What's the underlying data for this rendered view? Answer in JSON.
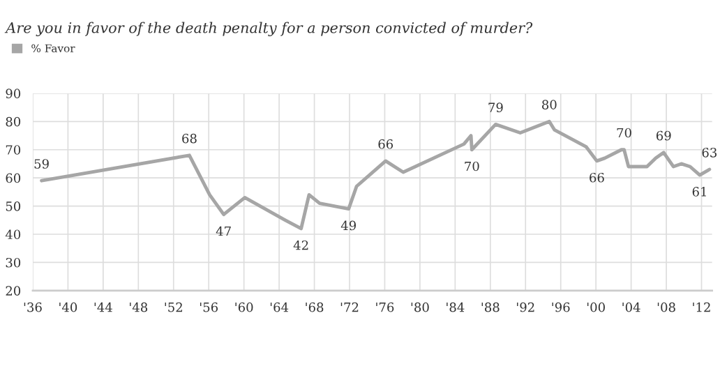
{
  "chart_data": {
    "type": "line",
    "title": "Are you in favor of the death penalty for a person convicted of murder?",
    "x": [
      1937.0,
      1953.8,
      1956.1,
      1957.7,
      1960.1,
      1964.7,
      1966.5,
      1967.4,
      1968.6,
      1971.9,
      1972.8,
      1976.1,
      1978.1,
      1985.0,
      1985.8,
      1985.9,
      1988.6,
      1991.4,
      1994.7,
      1995.3,
      1998.9,
      2000.1,
      2001.0,
      2002.9,
      2003.2,
      2003.7,
      2005.8,
      2006.8,
      2007.7,
      2008.8,
      2009.7,
      2010.7,
      2011.8,
      2012.9
    ],
    "series": [
      {
        "name": "% Favor",
        "color": "#a6a6a6",
        "values": [
          59,
          68,
          54,
          47,
          53,
          45,
          42,
          54,
          51,
          49,
          57,
          66,
          62,
          72,
          75,
          70,
          79,
          76,
          80,
          77,
          71,
          66,
          67,
          70,
          70,
          64,
          64,
          67,
          69,
          64,
          65,
          64,
          61,
          63
        ]
      }
    ],
    "xlim": [
      1936,
      2013.2
    ],
    "ylim": [
      20,
      90
    ],
    "xticks": [
      {
        "value": 1936,
        "label": "'36"
      },
      {
        "value": 1940,
        "label": "'40"
      },
      {
        "value": 1944,
        "label": "'44"
      },
      {
        "value": 1948,
        "label": "'48"
      },
      {
        "value": 1952,
        "label": "'52"
      },
      {
        "value": 1956,
        "label": "'56"
      },
      {
        "value": 1960,
        "label": "'60"
      },
      {
        "value": 1964,
        "label": "'64"
      },
      {
        "value": 1968,
        "label": "'68"
      },
      {
        "value": 1972,
        "label": "'72"
      },
      {
        "value": 1976,
        "label": "'76"
      },
      {
        "value": 1980,
        "label": "'80"
      },
      {
        "value": 1984,
        "label": "'84"
      },
      {
        "value": 1988,
        "label": "'88"
      },
      {
        "value": 1992,
        "label": "'92"
      },
      {
        "value": 1996,
        "label": "'96"
      },
      {
        "value": 2000,
        "label": "'00"
      },
      {
        "value": 2004,
        "label": "'04"
      },
      {
        "value": 2008,
        "label": "'08"
      },
      {
        "value": 2012,
        "label": "'12"
      }
    ],
    "yticks": [
      20,
      30,
      40,
      50,
      60,
      70,
      80,
      90
    ],
    "grid": true,
    "legend": "top left",
    "marker": "none",
    "line_style": "solid",
    "annotations": [
      {
        "text": "59",
        "x": 1937.0,
        "y": 59
      },
      {
        "text": "68",
        "x": 1953.8,
        "y": 68
      },
      {
        "text": "47",
        "x": 1957.7,
        "y": 47
      },
      {
        "text": "42",
        "x": 1966.5,
        "y": 42
      },
      {
        "text": "49",
        "x": 1971.9,
        "y": 49
      },
      {
        "text": "66",
        "x": 1976.1,
        "y": 66
      },
      {
        "text": "70",
        "x": 1985.9,
        "y": 70
      },
      {
        "text": "79",
        "x": 1988.6,
        "y": 79
      },
      {
        "text": "80",
        "x": 1994.7,
        "y": 80
      },
      {
        "text": "66",
        "x": 2000.1,
        "y": 66
      },
      {
        "text": "70",
        "x": 2003.2,
        "y": 70
      },
      {
        "text": "69",
        "x": 2007.7,
        "y": 69
      },
      {
        "text": "61",
        "x": 2011.8,
        "y": 61
      },
      {
        "text": "63",
        "x": 2012.9,
        "y": 63
      }
    ]
  }
}
